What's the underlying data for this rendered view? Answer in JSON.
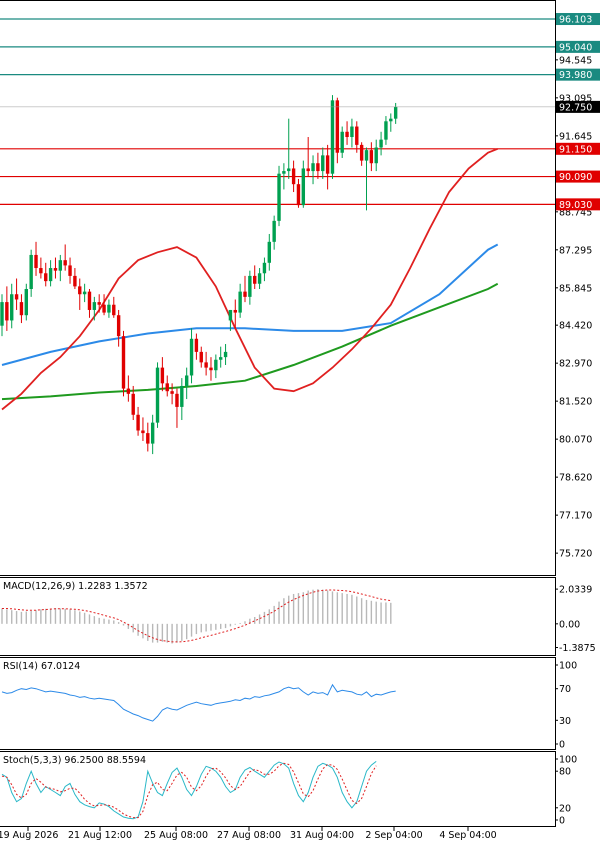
{
  "colors": {
    "bull": "#00a050",
    "bear": "#e00000",
    "ma_fast": "#e02020",
    "ma_mid": "#2c8ae8",
    "ma_slow": "#1f9a1f",
    "level_teal": "#1a8a80",
    "level_red": "#e00000",
    "label_teal": "#1a8a80",
    "label_red": "#e00000",
    "label_dark": "#000000",
    "macd_hist": "#b8b8b8",
    "macd_signal": "#e02020",
    "rsi": "#2c8ae8",
    "stoch_main": "#2ab8c8",
    "stoch_signal": "#e02020"
  },
  "chart_data": {
    "type": "candlestick",
    "y_axis": {
      "ticks": [
        "94.545",
        "93.095",
        "91.645",
        "88.745",
        "87.295",
        "85.845",
        "84.420",
        "82.970",
        "81.520",
        "80.070",
        "78.620",
        "77.170",
        "75.720"
      ],
      "ylim": [
        75.0,
        96.6
      ]
    },
    "x_axis": {
      "ticks": [
        "19 Aug 2026",
        "21 Aug 12:00",
        "25 Aug 08:00",
        "27 Aug 08:00",
        "31 Aug 04:00",
        "2 Sep 04:00",
        "4 Sep 04:00"
      ]
    },
    "levels": [
      {
        "label": "96.103",
        "value": 96.103,
        "color": "teal"
      },
      {
        "label": "95.040",
        "value": 95.04,
        "color": "teal"
      },
      {
        "label": "93.980",
        "value": 93.98,
        "color": "teal"
      },
      {
        "label": "91.150",
        "value": 91.15,
        "color": "red"
      },
      {
        "label": "90.090",
        "value": 90.09,
        "color": "red"
      },
      {
        "label": "89.030",
        "value": 89.03,
        "color": "red"
      }
    ],
    "current_price": "92.750",
    "candles": [
      {
        "o": 84.4,
        "h": 85.6,
        "l": 84.0,
        "c": 85.3
      },
      {
        "o": 85.3,
        "h": 85.9,
        "l": 84.2,
        "c": 84.6
      },
      {
        "o": 84.6,
        "h": 86.0,
        "l": 84.3,
        "c": 85.6
      },
      {
        "o": 85.6,
        "h": 86.2,
        "l": 85.0,
        "c": 85.4
      },
      {
        "o": 85.3,
        "h": 85.6,
        "l": 84.5,
        "c": 84.8
      },
      {
        "o": 84.8,
        "h": 86.0,
        "l": 84.6,
        "c": 85.8
      },
      {
        "o": 85.8,
        "h": 87.3,
        "l": 85.5,
        "c": 87.1
      },
      {
        "o": 87.1,
        "h": 87.6,
        "l": 86.3,
        "c": 86.6
      },
      {
        "o": 86.6,
        "h": 87.0,
        "l": 86.2,
        "c": 86.4
      },
      {
        "o": 86.4,
        "h": 86.8,
        "l": 85.9,
        "c": 86.1
      },
      {
        "o": 86.1,
        "h": 86.9,
        "l": 85.9,
        "c": 86.6
      },
      {
        "o": 86.6,
        "h": 87.0,
        "l": 86.2,
        "c": 86.5
      },
      {
        "o": 86.5,
        "h": 87.1,
        "l": 86.1,
        "c": 86.9
      },
      {
        "o": 86.9,
        "h": 87.5,
        "l": 86.5,
        "c": 86.7
      },
      {
        "o": 86.7,
        "h": 87.0,
        "l": 86.0,
        "c": 86.3
      },
      {
        "o": 86.3,
        "h": 86.6,
        "l": 85.8,
        "c": 85.9
      },
      {
        "o": 85.9,
        "h": 86.2,
        "l": 85.0,
        "c": 85.6
      },
      {
        "o": 85.6,
        "h": 86.0,
        "l": 85.3,
        "c": 85.7
      },
      {
        "o": 85.7,
        "h": 85.8,
        "l": 84.7,
        "c": 85.0
      },
      {
        "o": 85.0,
        "h": 85.5,
        "l": 84.6,
        "c": 85.3
      },
      {
        "o": 85.3,
        "h": 85.6,
        "l": 84.9,
        "c": 85.2
      },
      {
        "o": 85.2,
        "h": 85.6,
        "l": 84.8,
        "c": 84.9
      },
      {
        "o": 84.9,
        "h": 85.4,
        "l": 84.7,
        "c": 85.2
      },
      {
        "o": 85.2,
        "h": 85.5,
        "l": 84.7,
        "c": 84.8
      },
      {
        "o": 84.8,
        "h": 85.0,
        "l": 83.6,
        "c": 84.0
      },
      {
        "o": 84.0,
        "h": 84.2,
        "l": 81.7,
        "c": 82.0
      },
      {
        "o": 82.0,
        "h": 82.5,
        "l": 81.5,
        "c": 81.8
      },
      {
        "o": 81.8,
        "h": 82.1,
        "l": 80.8,
        "c": 81.0
      },
      {
        "o": 81.0,
        "h": 81.3,
        "l": 80.2,
        "c": 80.4
      },
      {
        "o": 80.4,
        "h": 80.9,
        "l": 80.0,
        "c": 80.3
      },
      {
        "o": 80.3,
        "h": 80.7,
        "l": 79.6,
        "c": 79.9
      },
      {
        "o": 79.9,
        "h": 81.0,
        "l": 79.5,
        "c": 80.7
      },
      {
        "o": 80.7,
        "h": 83.0,
        "l": 80.5,
        "c": 82.8
      },
      {
        "o": 82.8,
        "h": 83.2,
        "l": 81.9,
        "c": 82.2
      },
      {
        "o": 82.2,
        "h": 82.5,
        "l": 81.7,
        "c": 81.9
      },
      {
        "o": 81.9,
        "h": 82.2,
        "l": 81.4,
        "c": 81.8
      },
      {
        "o": 81.8,
        "h": 82.0,
        "l": 80.5,
        "c": 81.3
      },
      {
        "o": 81.3,
        "h": 82.4,
        "l": 80.8,
        "c": 82.1
      },
      {
        "o": 82.1,
        "h": 82.8,
        "l": 81.6,
        "c": 82.5
      },
      {
        "o": 82.5,
        "h": 84.3,
        "l": 82.2,
        "c": 83.9
      },
      {
        "o": 83.9,
        "h": 84.1,
        "l": 83.1,
        "c": 83.4
      },
      {
        "o": 83.4,
        "h": 83.6,
        "l": 82.8,
        "c": 83.0
      },
      {
        "o": 83.0,
        "h": 83.4,
        "l": 82.5,
        "c": 82.8
      },
      {
        "o": 82.8,
        "h": 83.2,
        "l": 82.3,
        "c": 82.7
      },
      {
        "o": 82.7,
        "h": 83.3,
        "l": 82.4,
        "c": 83.1
      },
      {
        "o": 83.1,
        "h": 83.6,
        "l": 82.8,
        "c": 83.2
      },
      {
        "o": 83.2,
        "h": 83.7,
        "l": 82.9,
        "c": 83.4
      },
      {
        "o": 84.6,
        "h": 85.0,
        "l": 84.2,
        "c": 85.0
      },
      {
        "o": 85.0,
        "h": 85.4,
        "l": 84.3,
        "c": 84.9
      },
      {
        "o": 84.9,
        "h": 86.0,
        "l": 84.7,
        "c": 85.7
      },
      {
        "o": 85.7,
        "h": 86.3,
        "l": 85.3,
        "c": 85.5
      },
      {
        "o": 85.5,
        "h": 86.5,
        "l": 85.2,
        "c": 86.3
      },
      {
        "o": 86.3,
        "h": 86.7,
        "l": 85.8,
        "c": 86.0
      },
      {
        "o": 86.0,
        "h": 86.6,
        "l": 85.8,
        "c": 86.4
      },
      {
        "o": 86.4,
        "h": 87.0,
        "l": 86.1,
        "c": 86.8
      },
      {
        "o": 86.8,
        "h": 87.9,
        "l": 86.5,
        "c": 87.6
      },
      {
        "o": 87.6,
        "h": 88.6,
        "l": 87.3,
        "c": 88.4
      },
      {
        "o": 88.4,
        "h": 90.5,
        "l": 88.2,
        "c": 90.2
      },
      {
        "o": 90.2,
        "h": 90.6,
        "l": 89.6,
        "c": 90.3
      },
      {
        "o": 90.3,
        "h": 92.3,
        "l": 90.0,
        "c": 90.4
      },
      {
        "o": 90.4,
        "h": 90.7,
        "l": 89.5,
        "c": 89.8
      },
      {
        "o": 89.8,
        "h": 90.0,
        "l": 88.9,
        "c": 89.0
      },
      {
        "o": 89.0,
        "h": 90.7,
        "l": 88.9,
        "c": 90.4
      },
      {
        "o": 90.4,
        "h": 91.6,
        "l": 90.1,
        "c": 90.3
      },
      {
        "o": 90.3,
        "h": 90.9,
        "l": 89.8,
        "c": 90.6
      },
      {
        "o": 90.6,
        "h": 91.0,
        "l": 90.0,
        "c": 90.3
      },
      {
        "o": 90.3,
        "h": 91.2,
        "l": 90.0,
        "c": 90.9
      },
      {
        "o": 90.9,
        "h": 91.3,
        "l": 89.6,
        "c": 90.2
      },
      {
        "o": 90.2,
        "h": 93.2,
        "l": 90.0,
        "c": 93.0
      },
      {
        "o": 93.0,
        "h": 93.1,
        "l": 90.6,
        "c": 91.0
      },
      {
        "o": 91.0,
        "h": 92.0,
        "l": 90.8,
        "c": 91.8
      },
      {
        "o": 91.8,
        "h": 92.2,
        "l": 91.3,
        "c": 91.6
      },
      {
        "o": 91.6,
        "h": 92.3,
        "l": 91.2,
        "c": 92.0
      },
      {
        "o": 92.0,
        "h": 92.2,
        "l": 91.0,
        "c": 91.3
      },
      {
        "o": 91.3,
        "h": 91.4,
        "l": 90.5,
        "c": 90.7
      },
      {
        "o": 90.7,
        "h": 91.2,
        "l": 88.8,
        "c": 91.1
      },
      {
        "o": 91.1,
        "h": 91.4,
        "l": 90.3,
        "c": 90.6
      },
      {
        "o": 90.6,
        "h": 91.5,
        "l": 90.3,
        "c": 91.2
      },
      {
        "o": 91.2,
        "h": 91.8,
        "l": 90.9,
        "c": 91.5
      },
      {
        "o": 91.5,
        "h": 92.4,
        "l": 91.3,
        "c": 92.2
      },
      {
        "o": 92.2,
        "h": 92.5,
        "l": 91.8,
        "c": 92.3
      },
      {
        "o": 92.3,
        "h": 92.9,
        "l": 92.1,
        "c": 92.75
      }
    ],
    "ma_fast": [
      [
        0,
        81.2
      ],
      [
        4,
        81.8
      ],
      [
        8,
        82.6
      ],
      [
        12,
        83.2
      ],
      [
        16,
        84.0
      ],
      [
        20,
        85.0
      ],
      [
        24,
        86.2
      ],
      [
        28,
        86.9
      ],
      [
        32,
        87.2
      ],
      [
        36,
        87.4
      ],
      [
        40,
        87.0
      ],
      [
        44,
        85.9
      ],
      [
        48,
        84.3
      ],
      [
        52,
        82.8
      ],
      [
        56,
        82.0
      ],
      [
        60,
        81.9
      ],
      [
        64,
        82.2
      ],
      [
        68,
        82.8
      ],
      [
        72,
        83.5
      ],
      [
        76,
        84.3
      ],
      [
        80,
        85.2
      ],
      [
        84,
        86.6
      ],
      [
        88,
        88.1
      ],
      [
        92,
        89.5
      ],
      [
        96,
        90.4
      ],
      [
        100,
        91.0
      ],
      [
        102,
        91.15
      ]
    ],
    "ma_mid": [
      [
        0,
        82.9
      ],
      [
        10,
        83.4
      ],
      [
        20,
        83.8
      ],
      [
        30,
        84.1
      ],
      [
        40,
        84.3
      ],
      [
        50,
        84.3
      ],
      [
        60,
        84.2
      ],
      [
        70,
        84.2
      ],
      [
        80,
        84.5
      ],
      [
        90,
        85.6
      ],
      [
        100,
        87.3
      ],
      [
        102,
        87.5
      ]
    ],
    "ma_slow": [
      [
        0,
        81.6
      ],
      [
        10,
        81.7
      ],
      [
        20,
        81.85
      ],
      [
        30,
        81.95
      ],
      [
        40,
        82.1
      ],
      [
        50,
        82.3
      ],
      [
        60,
        82.9
      ],
      [
        70,
        83.6
      ],
      [
        80,
        84.4
      ],
      [
        90,
        85.1
      ],
      [
        100,
        85.8
      ],
      [
        102,
        86.0
      ]
    ],
    "macd": {
      "label": "MACD(12,26,9) 1.2283 1.3572",
      "ticks": [
        "2.0339",
        "0.00",
        "-1.3875"
      ],
      "ylim": [
        -1.65,
        2.45
      ],
      "hist": [
        0.9,
        0.85,
        0.8,
        0.75,
        0.7,
        0.72,
        0.75,
        0.8,
        0.85,
        0.88,
        0.9,
        0.92,
        0.9,
        0.88,
        0.85,
        0.8,
        0.72,
        0.65,
        0.55,
        0.45,
        0.35,
        0.3,
        0.25,
        0.2,
        0.1,
        -0.1,
        -0.3,
        -0.5,
        -0.7,
        -0.85,
        -1.0,
        -1.1,
        -1.1,
        -1.05,
        -1.1,
        -1.15,
        -1.1,
        -1.0,
        -0.9,
        -0.75,
        -0.6,
        -0.5,
        -0.45,
        -0.4,
        -0.35,
        -0.3,
        -0.25,
        -0.15,
        -0.05,
        0.05,
        0.15,
        0.3,
        0.4,
        0.55,
        0.7,
        0.85,
        1.05,
        1.3,
        1.5,
        1.65,
        1.75,
        1.8,
        1.85,
        1.95,
        2.0,
        2.03,
        2.0,
        1.95,
        1.9,
        1.85,
        1.8,
        1.75,
        1.7,
        1.6,
        1.5,
        1.4,
        1.35,
        1.3,
        1.25,
        1.25,
        1.23
      ],
      "signal": [
        0.9,
        0.9,
        0.88,
        0.85,
        0.82,
        0.8,
        0.8,
        0.8,
        0.82,
        0.84,
        0.86,
        0.88,
        0.88,
        0.88,
        0.87,
        0.85,
        0.82,
        0.78,
        0.72,
        0.65,
        0.58,
        0.5,
        0.42,
        0.35,
        0.25,
        0.1,
        -0.05,
        -0.22,
        -0.4,
        -0.55,
        -0.7,
        -0.82,
        -0.92,
        -0.98,
        -1.02,
        -1.05,
        -1.06,
        -1.05,
        -1.02,
        -0.97,
        -0.9,
        -0.82,
        -0.75,
        -0.68,
        -0.6,
        -0.52,
        -0.45,
        -0.37,
        -0.28,
        -0.18,
        -0.08,
        0.05,
        0.18,
        0.3,
        0.44,
        0.58,
        0.74,
        0.92,
        1.1,
        1.27,
        1.42,
        1.55,
        1.66,
        1.76,
        1.85,
        1.92,
        1.96,
        1.98,
        1.98,
        1.97,
        1.95,
        1.92,
        1.88,
        1.82,
        1.75,
        1.67,
        1.6,
        1.52,
        1.45,
        1.4,
        1.36
      ]
    },
    "rsi": {
      "label": "RSI(14) 67.0124",
      "ticks": [
        "100",
        "70",
        "30",
        "0"
      ],
      "ylim": [
        0,
        100
      ],
      "values": [
        66,
        64,
        65,
        68,
        70,
        69,
        71,
        70,
        68,
        66,
        67,
        66,
        65,
        64,
        62,
        61,
        59,
        60,
        58,
        57,
        58,
        57,
        56,
        55,
        50,
        44,
        41,
        38,
        36,
        33,
        31,
        29,
        35,
        43,
        46,
        44,
        43,
        46,
        49,
        51,
        53,
        51,
        50,
        49,
        51,
        52,
        53,
        54,
        56,
        55,
        58,
        57,
        60,
        59,
        61,
        62,
        64,
        66,
        70,
        72,
        70,
        71,
        66,
        62,
        66,
        64,
        65,
        62,
        75,
        66,
        68,
        67,
        66,
        63,
        62,
        66,
        60,
        63,
        62,
        64,
        66,
        67
      ],
      "color": "rsi"
    },
    "stoch": {
      "label": "Stoch(5,3,3) 96.2500 88.5594",
      "ticks": [
        "100",
        "80",
        "20",
        "0"
      ],
      "ylim": [
        0,
        100
      ],
      "main": [
        75,
        70,
        45,
        30,
        35,
        60,
        80,
        60,
        45,
        55,
        50,
        45,
        40,
        55,
        60,
        42,
        30,
        25,
        22,
        20,
        28,
        26,
        22,
        15,
        10,
        5,
        3,
        2,
        5,
        30,
        80,
        60,
        45,
        40,
        60,
        78,
        85,
        70,
        50,
        40,
        55,
        75,
        88,
        85,
        80,
        70,
        55,
        45,
        50,
        70,
        82,
        86,
        80,
        75,
        70,
        80,
        90,
        95,
        92,
        85,
        60,
        40,
        30,
        45,
        70,
        88,
        93,
        90,
        85,
        70,
        45,
        30,
        20,
        30,
        55,
        80,
        90,
        96
      ],
      "signal": [
        72,
        70,
        58,
        42,
        36,
        42,
        60,
        68,
        62,
        54,
        52,
        50,
        46,
        48,
        52,
        52,
        44,
        34,
        27,
        23,
        24,
        25,
        24,
        21,
        16,
        10,
        6,
        4,
        4,
        14,
        40,
        58,
        62,
        50,
        48,
        60,
        74,
        78,
        70,
        54,
        48,
        56,
        72,
        84,
        85,
        79,
        69,
        56,
        50,
        55,
        67,
        79,
        83,
        80,
        75,
        75,
        80,
        89,
        93,
        91,
        79,
        61,
        43,
        38,
        48,
        67,
        84,
        91,
        90,
        83,
        67,
        49,
        32,
        27,
        35,
        55,
        76,
        89
      ]
    }
  }
}
